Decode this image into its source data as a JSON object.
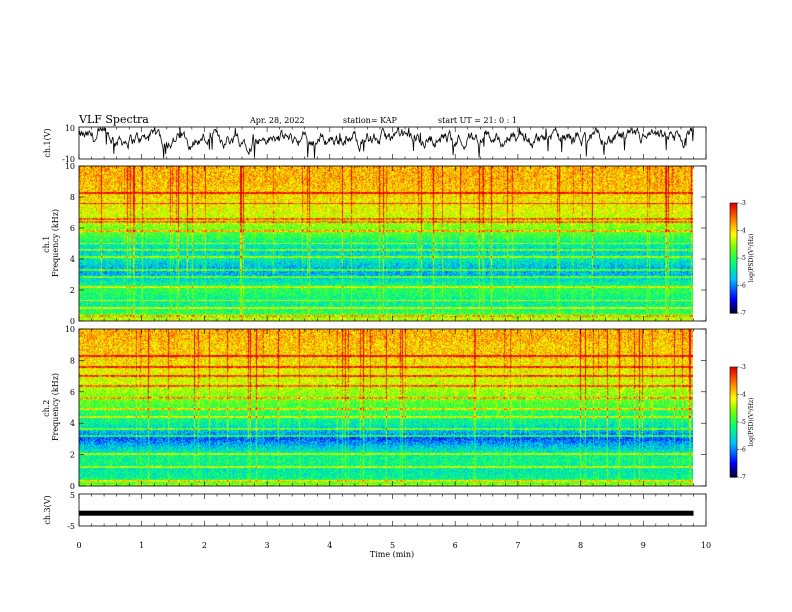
{
  "header": {
    "title": "VLF Spectra",
    "date": "Apr. 28, 2022",
    "station": "station= KAP",
    "start_ut": "start  UT  =  21: 0  : 1"
  },
  "chart_data": [
    {
      "type": "line",
      "panel": "ch1-waveform",
      "ylabel": "ch.1(V)",
      "ylim": [
        -10,
        10
      ],
      "yticks": [
        "10",
        "-10"
      ],
      "xlim": [
        0,
        10
      ],
      "x_extent_min": 9.8,
      "color": "#000000"
    },
    {
      "type": "heatmap",
      "panel": "ch1-spectrogram",
      "ylabel": "ch.1\nFrequency  (kHz)",
      "ylim": [
        0,
        10
      ],
      "yticks": [
        "0",
        "2",
        "4",
        "6",
        "8",
        "10"
      ],
      "xlim": [
        0,
        10
      ],
      "x_extent_min": 9.8,
      "colorbar": {
        "label": "log(PSD)(V²/Hz)",
        "range": [
          -7,
          -3
        ],
        "ticks": [
          "-3",
          "-4",
          "-5",
          "-6",
          "-7"
        ]
      },
      "profile_freq_khz": [
        0,
        0.5,
        1,
        1.5,
        2,
        2.5,
        3,
        3.5,
        4,
        4.5,
        5,
        5.5,
        6,
        6.5,
        7,
        7.5,
        8,
        8.5,
        9,
        9.5,
        10
      ],
      "profile_log_psd": [
        -4.3,
        -5.0,
        -5.3,
        -5.2,
        -5.0,
        -5.4,
        -5.8,
        -5.7,
        -5.4,
        -5.6,
        -5.3,
        -4.9,
        -4.6,
        -4.4,
        -4.2,
        -4.1,
        -4.0,
        -3.9,
        -3.8,
        -3.8,
        -3.8
      ],
      "tone_lines_khz": [
        0.3,
        0.8,
        1.3,
        2.2,
        2.8,
        3.3,
        4.1,
        4.6,
        5.0,
        5.8,
        6.4,
        6.6,
        7.6,
        8.3
      ]
    },
    {
      "type": "heatmap",
      "panel": "ch2-spectrogram",
      "ylabel": "ch.2\nFrequency  (kHz)",
      "ylim": [
        0,
        10
      ],
      "yticks": [
        "0",
        "2",
        "4",
        "6",
        "8",
        "10"
      ],
      "xlim": [
        0,
        10
      ],
      "x_extent_min": 9.8,
      "colorbar": {
        "label": "log(PSD)(V²/Hz)",
        "range": [
          -7,
          -3
        ],
        "ticks": [
          "-3",
          "-4",
          "-5",
          "-6",
          "-7"
        ]
      },
      "profile_freq_khz": [
        0,
        0.5,
        1,
        1.5,
        2,
        2.5,
        3,
        3.5,
        4,
        4.5,
        5,
        5.5,
        6,
        6.5,
        7,
        7.5,
        8,
        8.5,
        9,
        9.5,
        10
      ],
      "profile_log_psd": [
        -4.5,
        -5.3,
        -5.4,
        -5.2,
        -5.3,
        -5.7,
        -6.2,
        -5.7,
        -5.3,
        -5.1,
        -4.9,
        -4.7,
        -4.5,
        -4.3,
        -4.2,
        -4.1,
        -4.0,
        -3.9,
        -3.9,
        -3.8,
        -3.8
      ],
      "tone_lines_khz": [
        0.3,
        1.2,
        2.0,
        3.2,
        3.6,
        4.4,
        4.9,
        5.6,
        6.4,
        7.0,
        7.6,
        8.3
      ]
    },
    {
      "type": "line",
      "panel": "ch3-waveform",
      "ylabel": "ch.3(V)",
      "ylim": [
        -5,
        5
      ],
      "yticks": [
        "5",
        "-5"
      ],
      "xlim": [
        0,
        10
      ],
      "x_extent_min": 9.8,
      "level_v": -1.0,
      "color": "#000000"
    }
  ],
  "xaxis": {
    "label": "Time  (min)",
    "ticks": [
      "0",
      "1",
      "2",
      "3",
      "4",
      "5",
      "6",
      "7",
      "8",
      "9",
      "10"
    ]
  }
}
